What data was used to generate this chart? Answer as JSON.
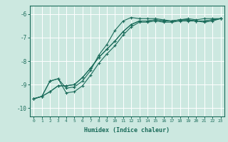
{
  "xlabel": "Humidex (Indice chaleur)",
  "bg_color": "#cce8e0",
  "line_color": "#1a6b5a",
  "grid_color": "#ffffff",
  "xlim": [
    -0.5,
    23.5
  ],
  "ylim": [
    -10.35,
    -5.65
  ],
  "yticks": [
    -10,
    -9,
    -8,
    -7,
    -6
  ],
  "xticks": [
    0,
    1,
    2,
    3,
    4,
    5,
    6,
    7,
    8,
    9,
    10,
    11,
    12,
    13,
    14,
    15,
    16,
    17,
    18,
    19,
    20,
    21,
    22,
    23
  ],
  "series": [
    {
      "x": [
        0,
        1,
        2,
        3,
        4,
        5,
        6,
        7,
        8,
        9,
        10,
        11,
        12,
        13,
        14,
        15,
        16,
        17,
        18,
        19,
        20,
        21,
        22,
        23
      ],
      "y": [
        -9.6,
        -9.5,
        -8.85,
        -8.75,
        -9.15,
        -9.1,
        -8.85,
        -8.4,
        -7.75,
        -7.3,
        -6.7,
        -6.3,
        -6.15,
        -6.2,
        -6.2,
        -6.2,
        -6.25,
        -6.3,
        -6.25,
        -6.2,
        -6.25,
        -6.2,
        -6.2,
        -6.2
      ]
    },
    {
      "x": [
        0,
        1,
        2,
        3,
        4,
        5,
        6,
        7,
        8,
        9,
        10,
        11,
        12,
        13,
        14,
        15,
        16,
        17,
        18,
        19,
        20,
        21,
        22,
        23
      ],
      "y": [
        -9.6,
        -9.5,
        -8.85,
        -8.75,
        -9.35,
        -9.3,
        -9.05,
        -8.6,
        -8.1,
        -7.7,
        -7.35,
        -6.9,
        -6.55,
        -6.35,
        -6.35,
        -6.3,
        -6.35,
        -6.35,
        -6.3,
        -6.3,
        -6.3,
        -6.35,
        -6.3,
        -6.2
      ]
    },
    {
      "x": [
        0,
        1,
        2,
        3,
        4,
        5,
        6,
        7,
        8,
        9,
        10,
        11,
        12,
        13,
        14,
        15,
        16,
        17,
        18,
        19,
        20,
        21,
        22,
        23
      ],
      "y": [
        -9.6,
        -9.5,
        -9.3,
        -9.05,
        -9.05,
        -9.0,
        -8.7,
        -8.3,
        -7.85,
        -7.5,
        -7.15,
        -6.75,
        -6.45,
        -6.3,
        -6.3,
        -6.25,
        -6.3,
        -6.3,
        -6.25,
        -6.25,
        -6.3,
        -6.3,
        -6.25,
        -6.2
      ]
    },
    {
      "x": [
        0,
        1,
        2,
        3,
        4,
        5,
        6,
        7,
        8,
        9,
        10,
        11,
        12,
        13,
        14,
        15,
        16,
        17,
        18,
        19,
        20,
        21,
        22,
        23
      ],
      "y": [
        -9.6,
        -9.5,
        -9.3,
        -9.05,
        -9.05,
        -9.0,
        -8.7,
        -8.3,
        -7.85,
        -7.5,
        -7.15,
        -6.75,
        -6.45,
        -6.3,
        -6.3,
        -6.25,
        -6.3,
        -6.3,
        -6.25,
        -6.25,
        -6.3,
        -6.3,
        -6.25,
        -6.2
      ]
    }
  ]
}
